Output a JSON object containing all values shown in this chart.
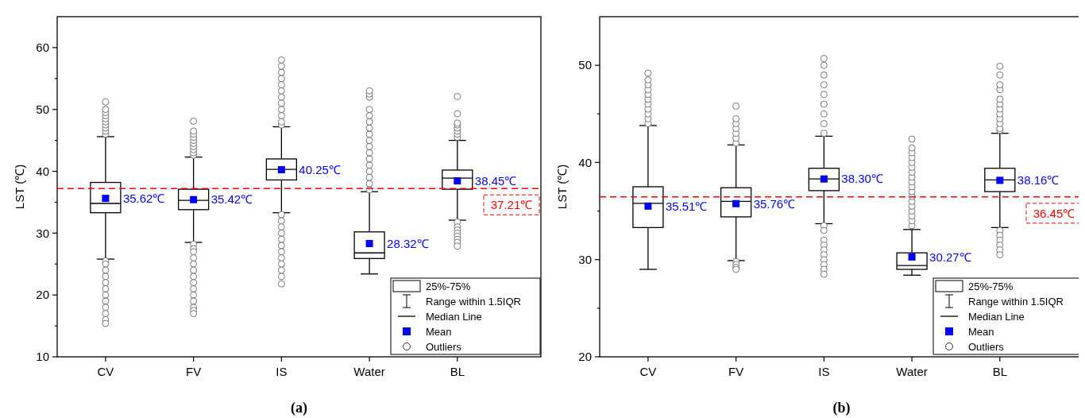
{
  "chart_data": [
    {
      "type": "box",
      "title": "(a)",
      "ylabel": "LST (℃)",
      "categories": [
        "CV",
        "FV",
        "IS",
        "Water",
        "BL"
      ],
      "ylim": [
        10,
        65
      ],
      "yticks": [
        10,
        {
          "value": 15,
          "label": null
        },
        20,
        {
          "value": 25,
          "label": null
        },
        30,
        {
          "value": 35,
          "label": null
        },
        40,
        {
          "value": 45,
          "label": null
        },
        50,
        {
          "value": 55,
          "label": null
        },
        60
      ],
      "legend": "bottom right",
      "marker": "circle",
      "series": [
        {
          "color": "#000000",
          "boxes": [
            {
              "low": 25.8,
              "q1": 33.3,
              "median": 34.8,
              "q3": 38.2,
              "high": 45.6,
              "mean": 35.62,
              "outliers": [
                46,
                46.5,
                47,
                47.5,
                48,
                48.5,
                49,
                49.5,
                50,
                51.2,
                25.5,
                25,
                24,
                23,
                22,
                21,
                20,
                19,
                18,
                17,
                16,
                15.4
              ]
            },
            {
              "low": 28.5,
              "q1": 33.8,
              "median": 35.3,
              "q3": 37.1,
              "high": 42.3,
              "mean": 35.42,
              "outliers": [
                42.6,
                43,
                43.5,
                44,
                44.5,
                45,
                45.5,
                46,
                46.5,
                48.1,
                28.2,
                27.5,
                27,
                26,
                25,
                24,
                23,
                22,
                21,
                20,
                19,
                18,
                17.5,
                17
              ]
            },
            {
              "low": 33.3,
              "q1": 38.6,
              "median": 40.3,
              "q3": 42,
              "high": 47.2,
              "mean": 40.25,
              "outliers": [
                47.5,
                48,
                49,
                50,
                51,
                52,
                53,
                54,
                55,
                56,
                57,
                58,
                33,
                32,
                31,
                30,
                29,
                28,
                27,
                26,
                25,
                24,
                23,
                21.8
              ]
            },
            {
              "low": 23.4,
              "q1": 25.9,
              "median": 26.8,
              "q3": 30.2,
              "high": 36.7,
              "mean": 28.32,
              "outliers": [
                37,
                38,
                39,
                40,
                41,
                42,
                43,
                44,
                45,
                46,
                47,
                48,
                49,
                50,
                52,
                52.5,
                53
              ]
            },
            {
              "low": 32.1,
              "q1": 37.1,
              "median": 38.9,
              "q3": 40.2,
              "high": 45,
              "mean": 38.45,
              "outliers": [
                45.5,
                46,
                46.5,
                47,
                47.5,
                47.8,
                49.3,
                52.1,
                31.8,
                31,
                30.5,
                30,
                29.5,
                29,
                28.5,
                27.9
              ]
            }
          ]
        }
      ],
      "ref_lines": [
        {
          "axis": "y",
          "value": 37.21,
          "label": "37.21℃",
          "color": "#ff0000",
          "line_style": "dashed"
        }
      ],
      "annotations": [
        "35.62℃",
        "35.42℃",
        "40.25℃",
        "28.32℃",
        "38.45℃",
        "25%-75%",
        "Range within 1.5IQR",
        "Median Line",
        "Mean",
        "Outliers"
      ]
    },
    {
      "type": "box",
      "title": "(b)",
      "ylabel": "LST (℃)",
      "categories": [
        "CV",
        "FV",
        "IS",
        "Water",
        "BL"
      ],
      "ylim": [
        20,
        55
      ],
      "yticks": [
        20,
        {
          "value": 25,
          "label": null
        },
        30,
        {
          "value": 35,
          "label": null
        },
        40,
        {
          "value": 45,
          "label": null
        },
        50
      ],
      "legend": "bottom right",
      "marker": "circle",
      "series": [
        {
          "color": "#000000",
          "boxes": [
            {
              "low": 29,
              "q1": 33.3,
              "median": 35.8,
              "q3": 37.5,
              "high": 43.8,
              "mean": 35.51,
              "outliers": [
                44,
                44.5,
                45,
                45.5,
                46,
                46.5,
                47,
                47.5,
                48,
                48.5,
                49.2
              ]
            },
            {
              "low": 29.9,
              "q1": 34.4,
              "median": 36,
              "q3": 37.4,
              "high": 41.8,
              "mean": 35.76,
              "outliers": [
                42,
                42.5,
                43,
                43.5,
                44,
                44.5,
                45.8,
                29.8,
                29.5,
                29.2,
                29
              ]
            },
            {
              "low": 33.7,
              "q1": 37.1,
              "median": 38.3,
              "q3": 39.4,
              "high": 42.7,
              "mean": 38.3,
              "outliers": [
                43,
                44,
                45,
                46,
                47,
                48,
                49,
                50,
                50.7,
                33.5,
                33,
                32,
                31.5,
                31,
                30.5,
                30,
                29.5,
                29,
                28.5
              ]
            },
            {
              "low": 28.4,
              "q1": 29,
              "median": 29.4,
              "q3": 30.7,
              "high": 33.1,
              "mean": 30.27,
              "outliers": [
                33.5,
                34,
                34.5,
                35,
                35.5,
                36,
                36.5,
                37,
                37.5,
                38,
                38.5,
                39,
                39.5,
                40,
                40.5,
                41,
                41.5,
                42.4
              ]
            },
            {
              "low": 33.3,
              "q1": 37,
              "median": 38.2,
              "q3": 39.4,
              "high": 43,
              "mean": 38.16,
              "outliers": [
                43.3,
                43.5,
                44,
                44.5,
                45,
                45.5,
                46,
                46.5,
                47.5,
                48,
                49,
                49.9,
                33,
                32.5,
                32,
                31.5,
                31,
                30.5
              ]
            }
          ]
        }
      ],
      "ref_lines": [
        {
          "axis": "y",
          "value": 36.45,
          "label": "36.45℃",
          "color": "#ff0000",
          "line_style": "dashed"
        }
      ],
      "annotations": [
        "35.51℃",
        "35.76℃",
        "38.30℃",
        "30.27℃",
        "38.16℃",
        "25%-75%",
        "Range within 1.5IQR",
        "Median Line",
        "Mean",
        "Outliers"
      ]
    }
  ]
}
